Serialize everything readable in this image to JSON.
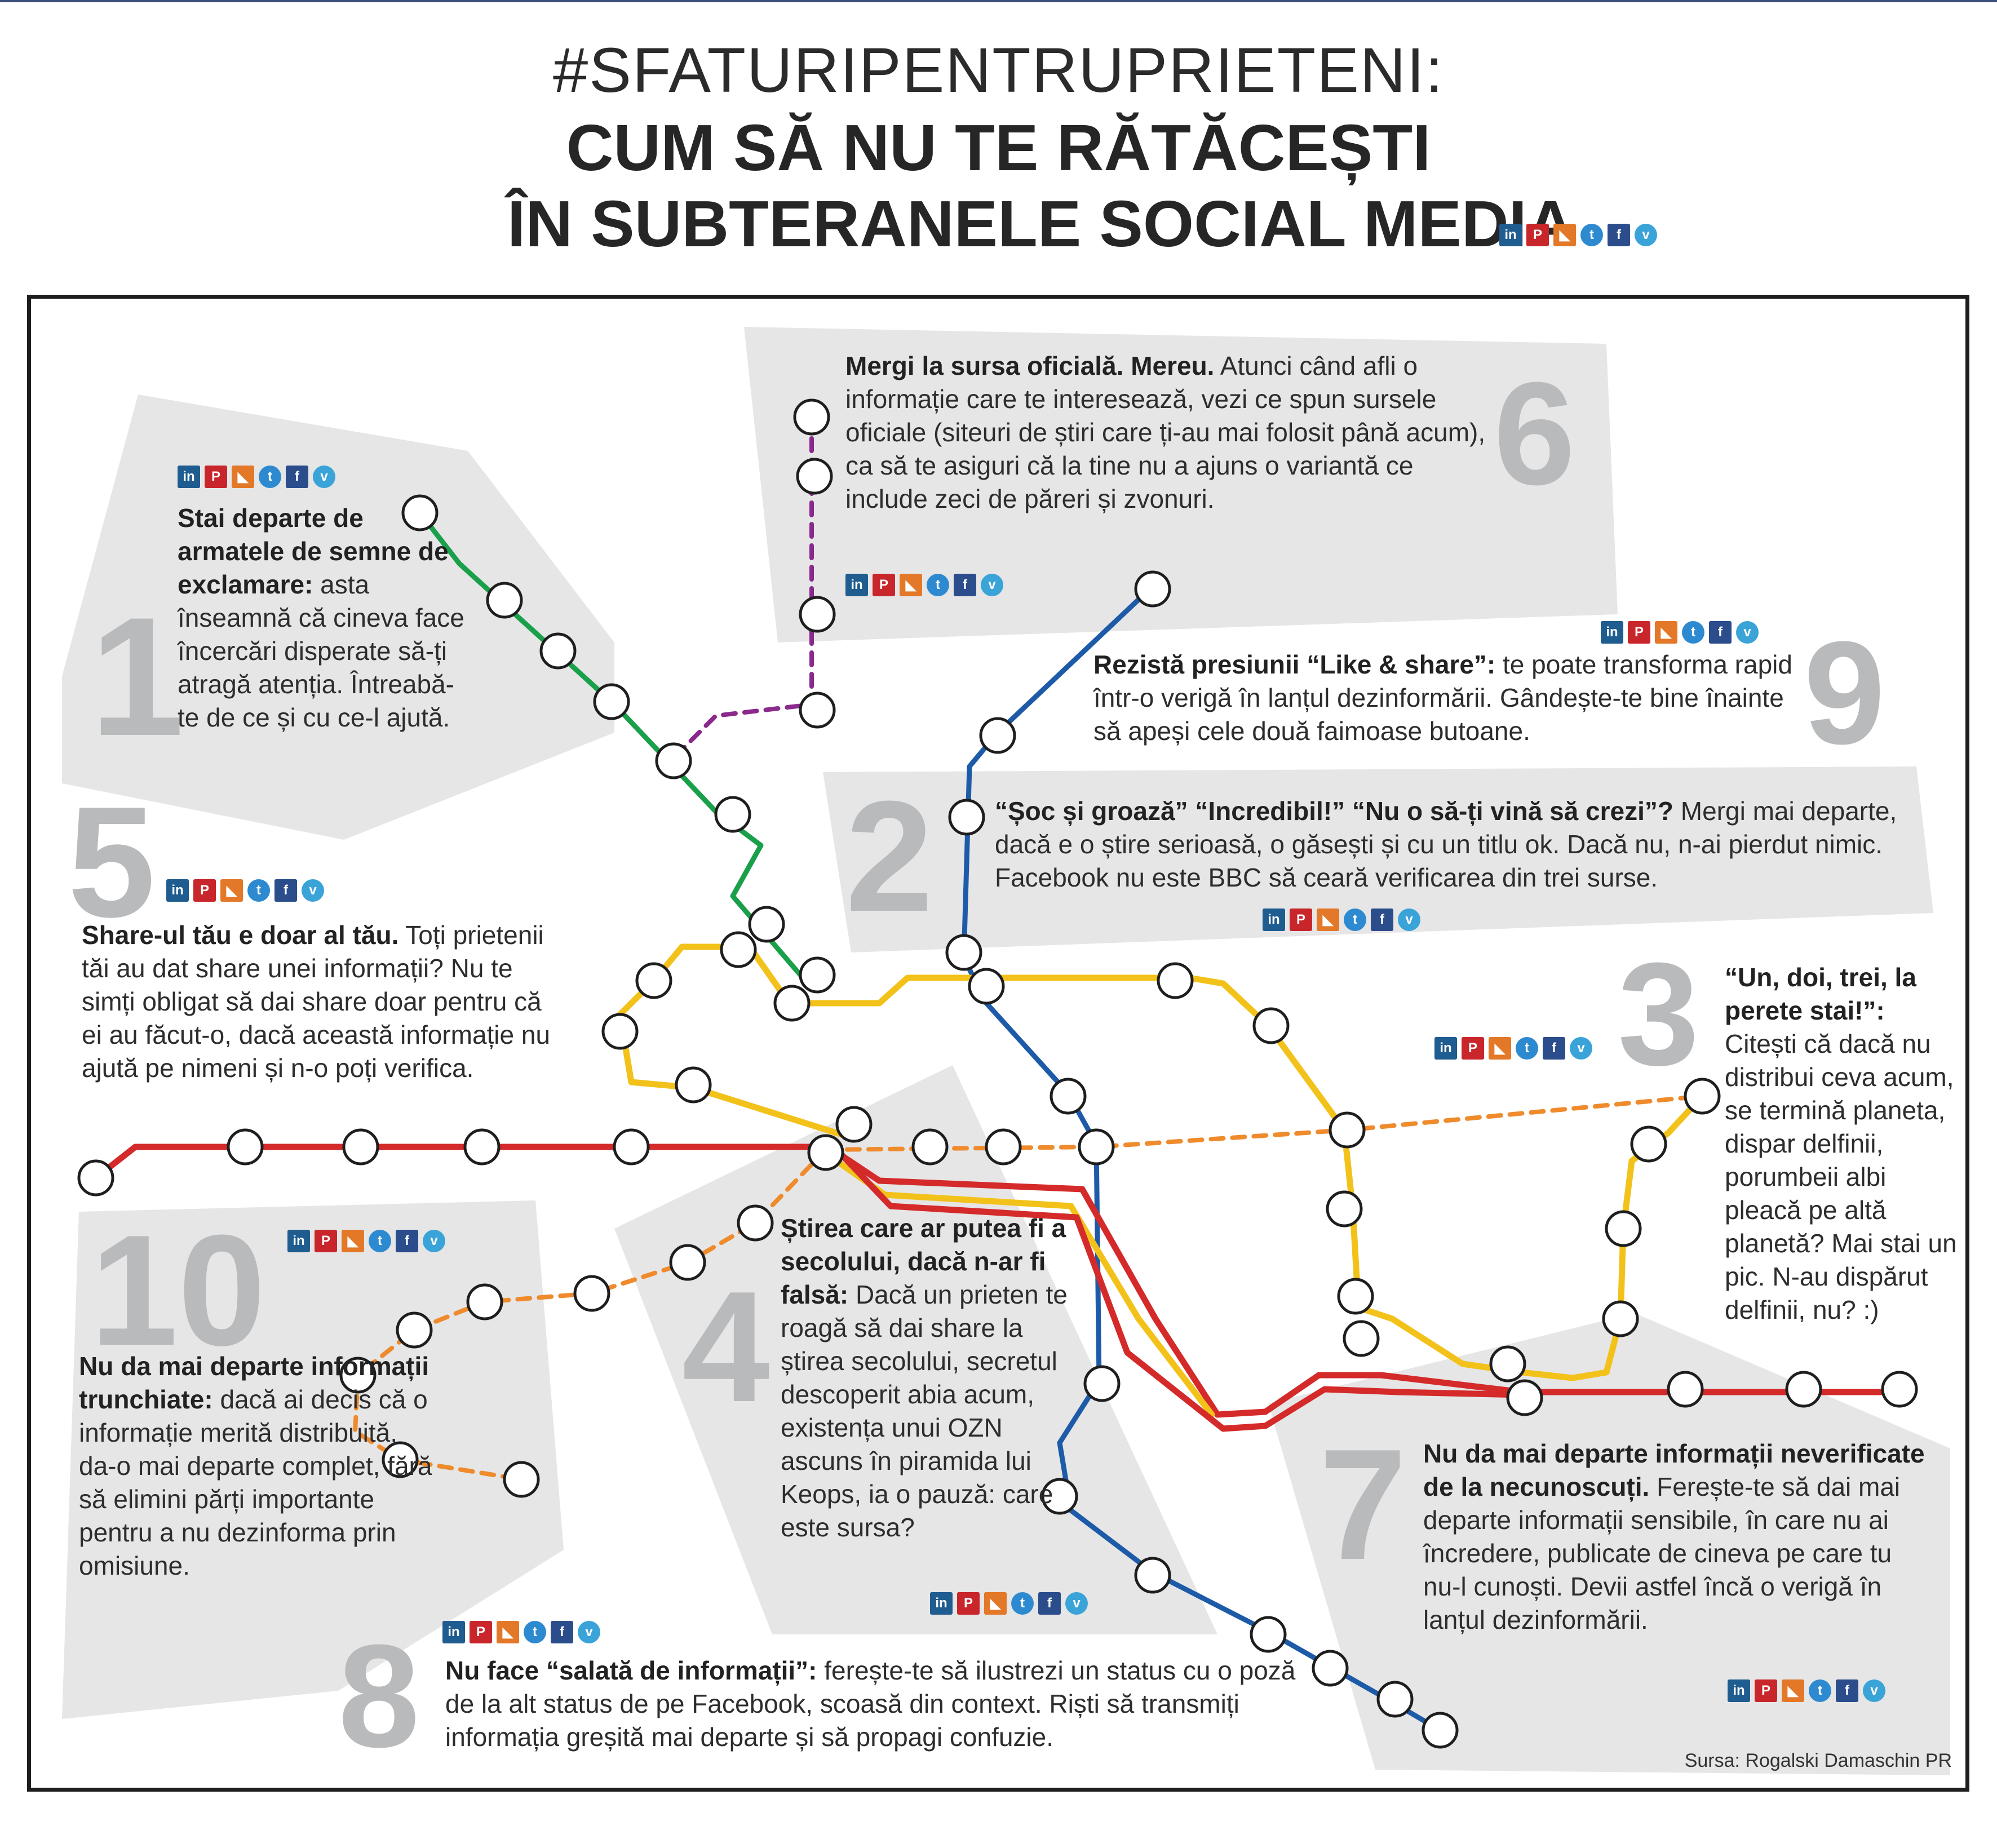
{
  "header": {
    "hashtag": "#SFATURIPENTRUPRIETENI:",
    "line1": "CUM SĂ NU TE RĂTĂCEȘTI",
    "line2": "ÎN SUBTERANELE SOCIAL MEDIA"
  },
  "social_icons": [
    "linkedin-icon",
    "pinterest-icon",
    "rss-icon",
    "twitter-icon",
    "facebook-icon",
    "vimeo-icon"
  ],
  "line_colors": {
    "green": "#1aa04a",
    "purple": "#8b2a8c",
    "blue": "#1d5ba8",
    "yellow": "#f3c21a",
    "red": "#d42a2a",
    "orange": "#ef8b2c",
    "panel": "#e6e6e7",
    "number": "#b9babc"
  },
  "tips": [
    {
      "number": "1",
      "bold": "Stai departe de armatele de semne de exclamare:",
      "text": " asta înseamnă că cineva face încercări disperate să-ți atragă atenția. Întreabă-te de ce și cu ce-l ajută."
    },
    {
      "number": "2",
      "bold": "“Șoc și groază” “Incredibil!” “Nu o să-ți vină să crezi”?",
      "text": " Mergi mai departe, dacă e o știre serioasă, o găsești și cu un titlu ok. Dacă nu, n-ai pierdut nimic. Facebook nu este BBC să ceară verificarea din trei surse."
    },
    {
      "number": "3",
      "bold": "“Un, doi, trei, la perete stai!”:",
      "text": " Citești că dacă nu distribui ceva acum, se termină planeta, dispar delfinii, porumbeii albi pleacă pe altă planetă? Mai stai un pic. N-au dispărut delfinii, nu? :)"
    },
    {
      "number": "4",
      "bold": "Știrea care ar putea fi a secolului, dacă n-ar fi falsă:",
      "text": " Dacă un prieten te roagă să dai share la știrea secolului, secretul descoperit abia acum, existența unui OZN ascuns în piramida lui Keops, ia o pauză: care este sursa?"
    },
    {
      "number": "5",
      "bold": "Share-ul tău e doar al tău.",
      "text": " Toți prietenii tăi au dat share unei informații? Nu te simți obligat să dai share doar pentru că ei au făcut-o, dacă această informație nu ajută pe nimeni și n-o poți verifica."
    },
    {
      "number": "6",
      "bold": "Mergi la sursa oficială. Mereu.",
      "text": " Atunci când afli o informație care te interesează, vezi ce spun sursele oficiale (siteuri de știri care ți-au mai folosit până acum), ca să te asiguri că la tine nu a ajuns o variantă ce include zeci de păreri și zvonuri."
    },
    {
      "number": "7",
      "bold": "Nu da mai departe informații neverificate de la necunoscuți.",
      "text": " Ferește-te să dai mai departe informații sensibile, în care nu ai încredere, publicate de cineva pe care tu nu-l cunoști. Devii astfel încă o verigă în lanțul dezinformării."
    },
    {
      "number": "8",
      "bold": "Nu face “salată de informații”:",
      "text": " ferește-te să ilustrezi un status cu o poză de la alt status de pe Facebook, scoasă din context. Riști să transmiți informația greșită mai departe și să propagi confuzie."
    },
    {
      "number": "9",
      "bold": "Rezistă presiunii “Like & share”:",
      "text": " te poate transforma rapid într-o verigă în lanțul dezinformării. Gândește-te bine înainte să apeși cele două faimoase butoane."
    },
    {
      "number": "10",
      "bold": "Nu da mai departe informații trunchiate:",
      "text": " dacă ai decis că o informație merită distribuită, da-o mai departe complet, fără să elimini părți importante pentru a nu dezinforma prin omisiune."
    }
  ],
  "source": "Sursa: Rogalski Damaschin PR"
}
